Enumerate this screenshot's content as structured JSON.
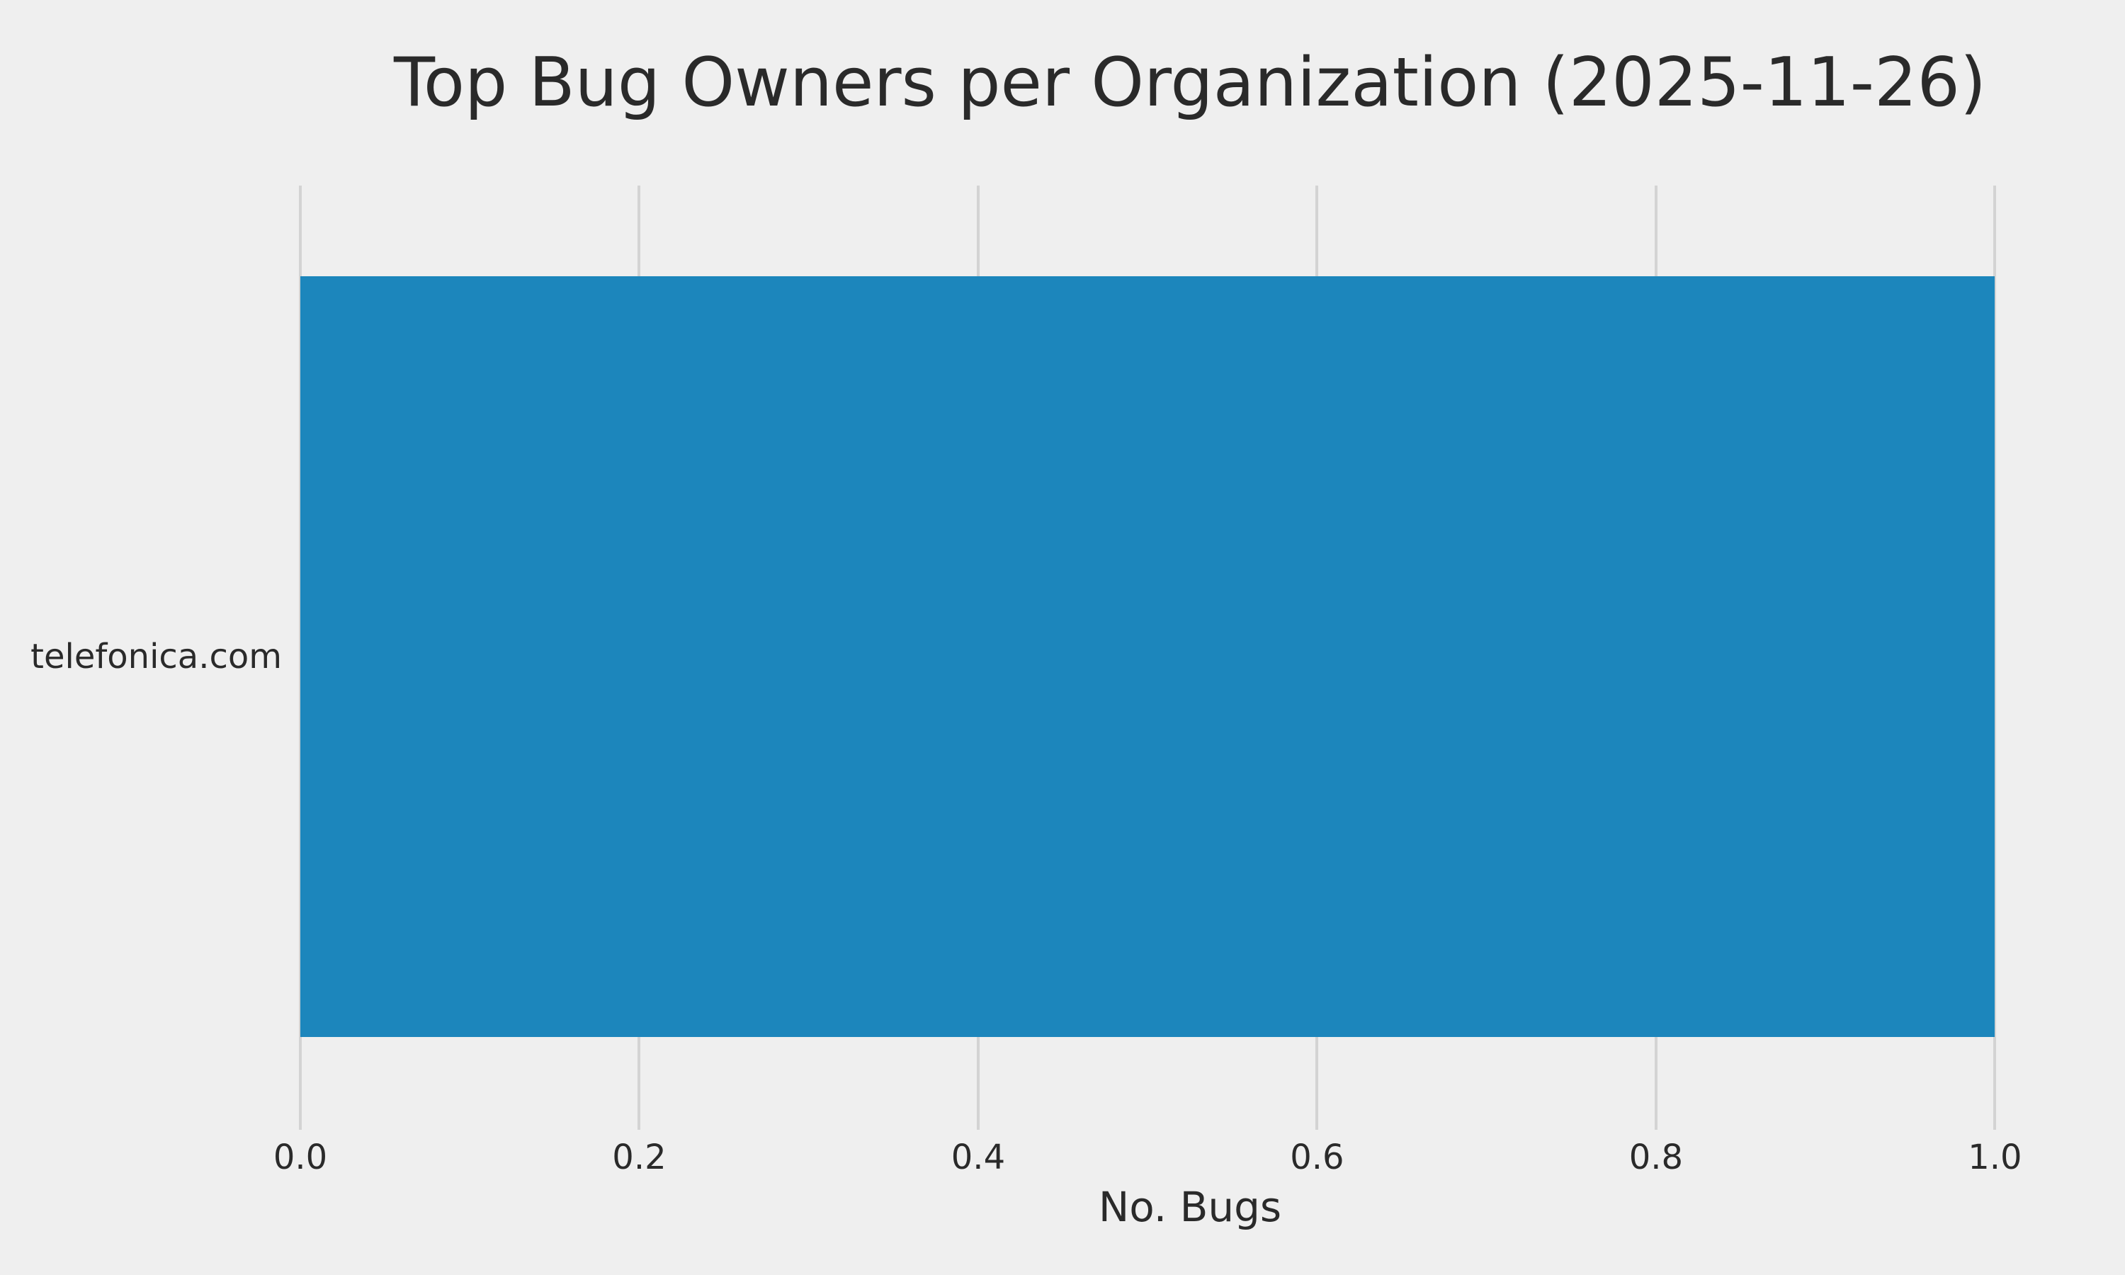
{
  "chart_data": {
    "type": "bar",
    "orientation": "horizontal",
    "title": "Top Bug Owners per Organization (2025-11-26)",
    "xlabel": "No. Bugs",
    "ylabel": "",
    "categories": [
      "telefonica.com"
    ],
    "values": [
      1.0
    ],
    "xlim": [
      0.0,
      1.05
    ],
    "xticks": [
      0.0,
      0.2,
      0.4,
      0.6,
      0.8,
      1.0
    ],
    "xtick_decimals": 1,
    "grid": true,
    "legend": "none",
    "colors": {
      "bar": "#1c86bc",
      "background": "#efefef",
      "grid": "#d3d3d3",
      "text": "#2a2a2a"
    }
  }
}
